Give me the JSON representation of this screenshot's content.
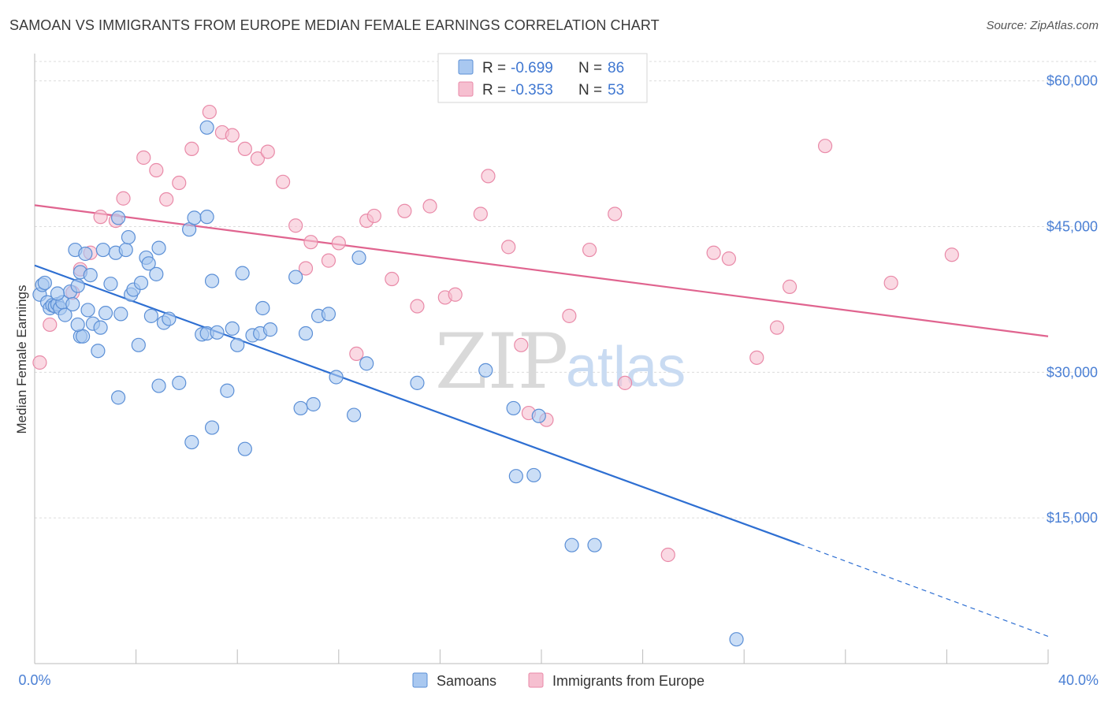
{
  "title": "SAMOAN VS IMMIGRANTS FROM EUROPE MEDIAN FEMALE EARNINGS CORRELATION CHART",
  "source": "Source: ZipAtlas.com",
  "watermark": {
    "zip": "ZIP",
    "atlas": "atlas"
  },
  "colors": {
    "samoans_fill": "#a9c8f0",
    "samoans_stroke": "#5b8fd6",
    "samoans_line": "#2e6fd2",
    "europe_fill": "#f6bfd0",
    "europe_stroke": "#e98aa8",
    "europe_line": "#e0648f",
    "axis_text": "#4a7fd4",
    "grid": "#dcdcdc"
  },
  "legend": {
    "rows": [
      {
        "r_label": "R = ",
        "r_value": "-0.699",
        "n_label": "N = ",
        "n_value": "86"
      },
      {
        "r_label": "R = ",
        "r_value": "-0.353",
        "n_label": "N = ",
        "n_value": "53"
      }
    ]
  },
  "bottom_legend": {
    "samoans": "Samoans",
    "europe": "Immigrants from Europe"
  },
  "chart_data": {
    "type": "scatter",
    "xlabel": "",
    "ylabel": "Median Female Earnings",
    "xlim": [
      0,
      40
    ],
    "ylim": [
      0,
      62000
    ],
    "x_tick_labels": [
      "0.0%",
      "40.0%"
    ],
    "y_ticks": [
      15000,
      30000,
      45000,
      60000
    ],
    "y_tick_labels": [
      "$15,000",
      "$30,000",
      "$45,000",
      "$60,000"
    ],
    "grid": true,
    "legend_position": "top-center",
    "series": [
      {
        "name": "Samoans",
        "r": -0.699,
        "n": 86,
        "trend": {
          "x0": 0,
          "y0": 41000,
          "x1": 30.2,
          "y1": 12300,
          "dashed_to_x": 40,
          "dashed_to_y": 2800
        },
        "points": [
          [
            0.2,
            38000
          ],
          [
            0.3,
            39000
          ],
          [
            0.4,
            39200
          ],
          [
            0.5,
            37200
          ],
          [
            0.6,
            36600
          ],
          [
            0.7,
            36900
          ],
          [
            0.8,
            36800
          ],
          [
            0.9,
            37000
          ],
          [
            1.0,
            36600
          ],
          [
            1.1,
            37200
          ],
          [
            1.2,
            35900
          ],
          [
            1.4,
            38300
          ],
          [
            1.5,
            37000
          ],
          [
            1.6,
            42600
          ],
          [
            1.7,
            38900
          ],
          [
            1.8,
            40300
          ],
          [
            1.8,
            33700
          ],
          [
            1.9,
            33700
          ],
          [
            2.0,
            42200
          ],
          [
            2.1,
            36400
          ],
          [
            2.2,
            40000
          ],
          [
            2.3,
            35000
          ],
          [
            2.5,
            32200
          ],
          [
            2.6,
            34600
          ],
          [
            2.7,
            42600
          ],
          [
            2.8,
            36100
          ],
          [
            3.0,
            39100
          ],
          [
            3.2,
            42300
          ],
          [
            3.3,
            45900
          ],
          [
            3.4,
            36000
          ],
          [
            3.6,
            42600
          ],
          [
            3.7,
            43900
          ],
          [
            3.8,
            38000
          ],
          [
            3.9,
            38500
          ],
          [
            4.1,
            32800
          ],
          [
            4.2,
            39200
          ],
          [
            4.4,
            41800
          ],
          [
            4.5,
            41200
          ],
          [
            4.6,
            35800
          ],
          [
            4.8,
            40100
          ],
          [
            4.9,
            42800
          ],
          [
            5.1,
            35100
          ],
          [
            5.3,
            35500
          ],
          [
            5.7,
            28900
          ],
          [
            6.1,
            44700
          ],
          [
            6.3,
            45900
          ],
          [
            6.6,
            33900
          ],
          [
            6.8,
            34000
          ],
          [
            7.0,
            39400
          ],
          [
            7.2,
            34100
          ],
          [
            7.6,
            28100
          ],
          [
            7.8,
            34500
          ],
          [
            8.0,
            32800
          ],
          [
            8.2,
            40200
          ],
          [
            8.6,
            33800
          ],
          [
            8.9,
            34000
          ],
          [
            9.0,
            36600
          ],
          [
            9.3,
            34400
          ],
          [
            3.3,
            27400
          ],
          [
            4.9,
            28600
          ],
          [
            6.2,
            22800
          ],
          [
            7.0,
            24300
          ],
          [
            8.3,
            22100
          ],
          [
            10.3,
            39800
          ],
          [
            10.5,
            26300
          ],
          [
            10.7,
            34000
          ],
          [
            11.0,
            26700
          ],
          [
            11.2,
            35800
          ],
          [
            11.6,
            36000
          ],
          [
            11.9,
            29500
          ],
          [
            12.6,
            25600
          ],
          [
            12.8,
            41800
          ],
          [
            13.1,
            30900
          ],
          [
            15.1,
            28900
          ],
          [
            17.8,
            30200
          ],
          [
            18.9,
            26300
          ],
          [
            19.9,
            25500
          ],
          [
            19.0,
            19300
          ],
          [
            19.7,
            19400
          ],
          [
            21.2,
            12200
          ],
          [
            22.1,
            12200
          ],
          [
            27.7,
            2500
          ],
          [
            6.8,
            55200
          ],
          [
            6.8,
            46000
          ],
          [
            0.9,
            38100
          ],
          [
            1.7,
            34900
          ]
        ]
      },
      {
        "name": "Immigrants from Europe",
        "r": -0.353,
        "n": 53,
        "trend": {
          "x0": 0,
          "y0": 47200,
          "x1": 40,
          "y1": 33700
        },
        "points": [
          [
            0.2,
            31000
          ],
          [
            0.6,
            34900
          ],
          [
            1.5,
            38200
          ],
          [
            1.8,
            40600
          ],
          [
            2.2,
            42300
          ],
          [
            2.6,
            46000
          ],
          [
            3.2,
            45600
          ],
          [
            3.5,
            47900
          ],
          [
            4.3,
            52100
          ],
          [
            4.8,
            50800
          ],
          [
            5.2,
            47800
          ],
          [
            5.7,
            49500
          ],
          [
            6.2,
            53000
          ],
          [
            6.9,
            56800
          ],
          [
            7.4,
            54700
          ],
          [
            7.8,
            54400
          ],
          [
            8.3,
            53000
          ],
          [
            8.8,
            52000
          ],
          [
            9.2,
            52700
          ],
          [
            9.8,
            49600
          ],
          [
            10.3,
            45100
          ],
          [
            10.7,
            40700
          ],
          [
            10.9,
            43400
          ],
          [
            11.6,
            41500
          ],
          [
            12.0,
            43300
          ],
          [
            12.7,
            31900
          ],
          [
            13.1,
            45600
          ],
          [
            13.4,
            46100
          ],
          [
            14.1,
            39600
          ],
          [
            14.6,
            46600
          ],
          [
            15.1,
            36800
          ],
          [
            15.6,
            47100
          ],
          [
            16.2,
            37700
          ],
          [
            16.6,
            38000
          ],
          [
            17.6,
            46300
          ],
          [
            17.9,
            50200
          ],
          [
            18.7,
            42900
          ],
          [
            19.2,
            32800
          ],
          [
            19.5,
            25800
          ],
          [
            20.2,
            25100
          ],
          [
            21.1,
            35800
          ],
          [
            21.9,
            42600
          ],
          [
            22.9,
            46300
          ],
          [
            23.3,
            28900
          ],
          [
            26.8,
            42300
          ],
          [
            27.4,
            41700
          ],
          [
            28.5,
            31500
          ],
          [
            29.3,
            34600
          ],
          [
            29.8,
            38800
          ],
          [
            31.2,
            53300
          ],
          [
            33.8,
            39200
          ],
          [
            36.2,
            42100
          ],
          [
            25.0,
            11200
          ]
        ]
      }
    ]
  }
}
